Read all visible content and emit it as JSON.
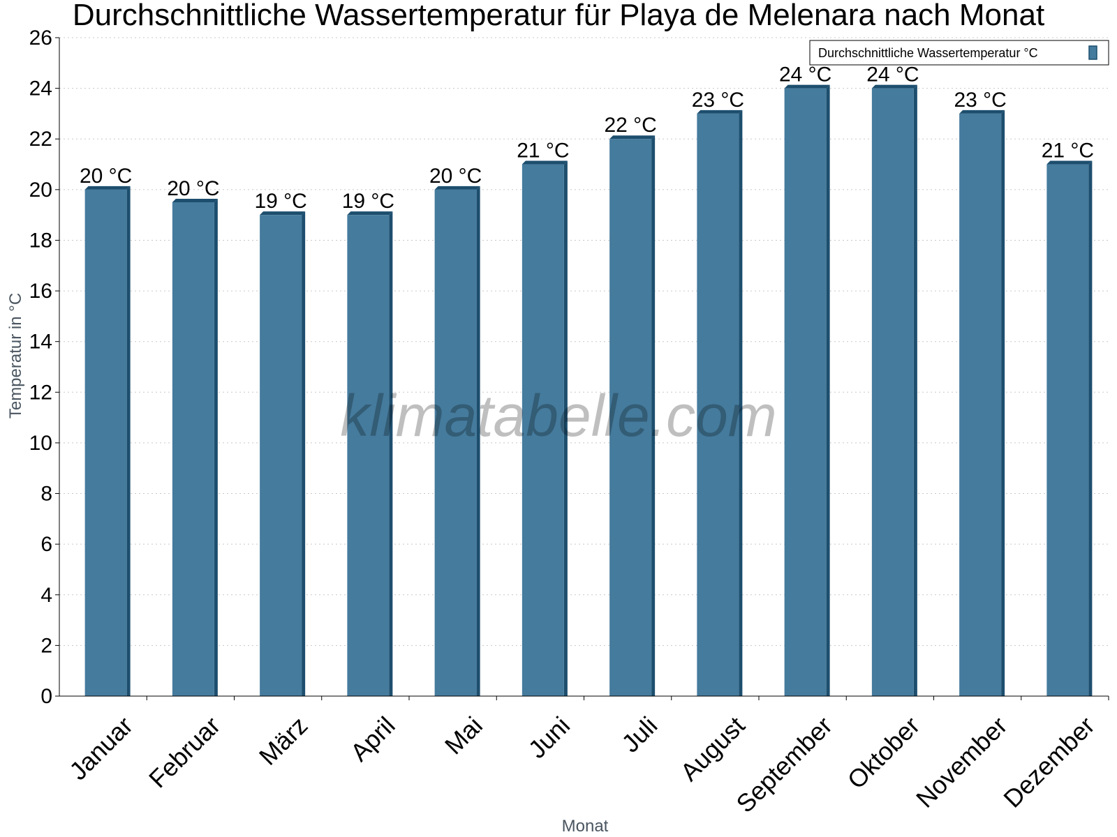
{
  "chart_data": {
    "type": "bar",
    "title": "Durchschnittliche Wassertemperatur für Playa de Melenara nach Monat",
    "xlabel": "Monat",
    "ylabel": "Temperatur in °C",
    "ylim": [
      0,
      26
    ],
    "yticks": [
      "0",
      "2",
      "4",
      "6",
      "8",
      "10",
      "12",
      "14",
      "16",
      "18",
      "20",
      "22",
      "24",
      "26"
    ],
    "grid": true,
    "legend_position": "top-right",
    "categories": [
      "Januar",
      "Februar",
      "März",
      "April",
      "Mai",
      "Juni",
      "Juli",
      "August",
      "September",
      "Oktober",
      "November",
      "Dezember"
    ],
    "series": [
      {
        "name": "Durchschnittliche Wassertemperatur °C",
        "values": [
          20,
          19.5,
          19,
          19,
          20,
          21,
          22,
          23,
          24,
          24,
          23,
          21
        ],
        "labels": [
          "20 °C",
          "20 °C",
          "19 °C",
          "19 °C",
          "20 °C",
          "21 °C",
          "22 °C",
          "23 °C",
          "24 °C",
          "24 °C",
          "23 °C",
          "21 °C"
        ],
        "color": "#457b9d",
        "edge_color": "#1d4e6e"
      }
    ],
    "watermark": "klimatabelle.com"
  }
}
